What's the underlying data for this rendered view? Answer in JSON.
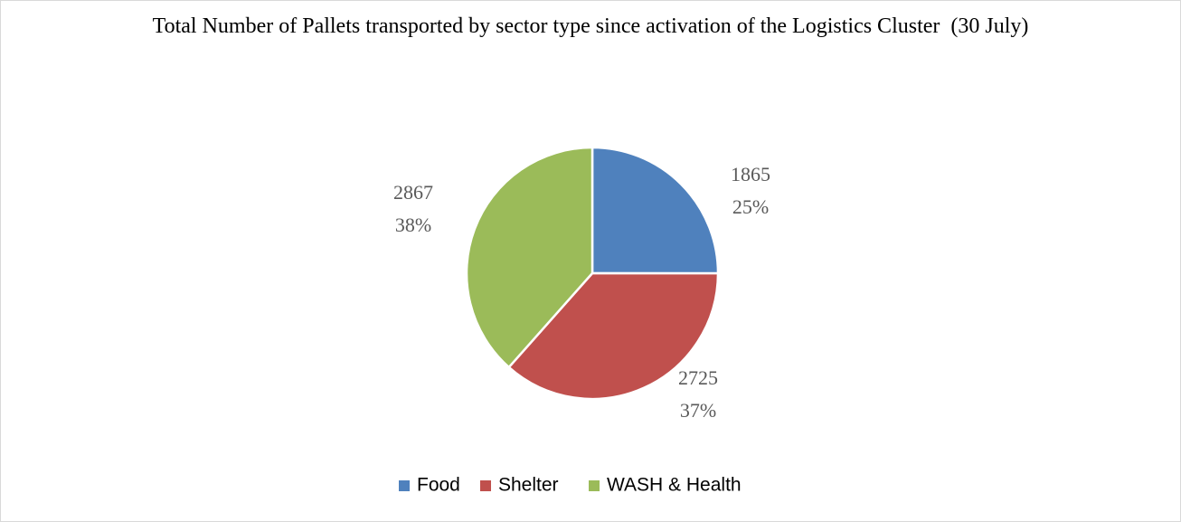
{
  "chart_data": {
    "type": "pie",
    "title": "Total Number of Pallets transported by sector type since activation of the Logistics Cluster  (30 July)",
    "categories": [
      "Food",
      "Shelter",
      "WASH & Health"
    ],
    "values": [
      1865,
      2725,
      2867
    ],
    "percent_labels": [
      "25%",
      "37%",
      "38%"
    ],
    "colors": [
      "#4f81bd",
      "#c0504d",
      "#9bbb59"
    ],
    "legend": "bottom"
  }
}
